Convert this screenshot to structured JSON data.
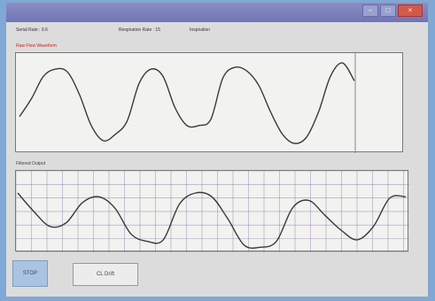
{
  "window": {
    "title": ""
  },
  "info": {
    "field1": "Serial Rate : 9.6",
    "field2": "Respiration Rate : 15",
    "field3": "Inspiration"
  },
  "top_plot": {
    "label": "Raw Flow Waveform"
  },
  "bottom_plot": {
    "label": "Filtered Output"
  },
  "buttons": {
    "stop": "STOP",
    "second": "CL  Drift"
  },
  "colors": {
    "accent": "#cc2222",
    "desktop": "#7fa8d6",
    "stop_button": "#a9c4e3"
  },
  "chart_data": [
    {
      "type": "line",
      "series": [
        {
          "values": [
            0.35,
            0.55,
            0.8,
            0.88,
            0.85,
            0.6,
            0.25,
            0.08,
            0.15,
            0.3,
            0.72,
            0.88,
            0.8,
            0.45,
            0.25,
            0.25,
            0.32,
            0.78,
            0.9,
            0.86,
            0.7,
            0.4,
            0.15,
            0.05,
            0.12,
            0.4,
            0.8,
            0.95,
            0.75
          ]
        }
      ],
      "ylim": [
        0,
        1
      ]
    },
    {
      "type": "line",
      "series": [
        {
          "values": [
            0.75,
            0.5,
            0.3,
            0.35,
            0.62,
            0.7,
            0.55,
            0.2,
            0.1,
            0.12,
            0.6,
            0.75,
            0.7,
            0.4,
            0.05,
            0.02,
            0.1,
            0.55,
            0.65,
            0.45,
            0.25,
            0.12,
            0.3,
            0.68,
            0.7
          ]
        }
      ],
      "ylim": [
        0,
        1
      ]
    }
  ]
}
